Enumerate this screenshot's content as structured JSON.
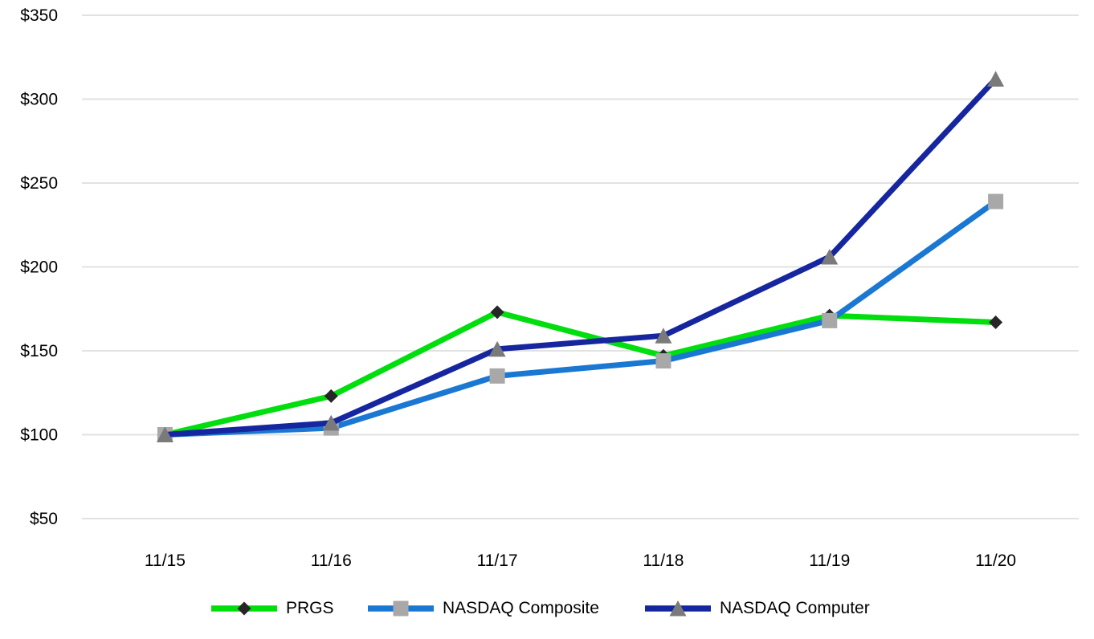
{
  "page": {
    "background_color": "#ffffff",
    "text_color": "#000000",
    "gridline_color": "#e2e2e2"
  },
  "chart_data": {
    "type": "line",
    "title": "",
    "xlabel": "",
    "ylabel": "",
    "x_labels": [
      "11/15",
      "11/16",
      "11/17",
      "11/18",
      "11/19",
      "11/20"
    ],
    "y_ticks": [
      50,
      100,
      150,
      200,
      250,
      300,
      350
    ],
    "y_tick_labels": [
      "$50",
      "$100",
      "$150",
      "$200",
      "$250",
      "$300",
      "$350"
    ],
    "ylim": [
      50,
      350
    ],
    "grid": true,
    "legend_position": "bottom",
    "series": [
      {
        "name": "PRGS",
        "color": "#00de0e",
        "marker": "diamond",
        "marker_color": "#262626",
        "values": [
          100,
          123,
          173,
          147,
          171,
          167
        ]
      },
      {
        "name": "NASDAQ Composite",
        "color": "#1a78d3",
        "marker": "square",
        "marker_color": "#a8a8a8",
        "values": [
          100,
          104,
          135,
          144,
          168,
          239
        ]
      },
      {
        "name": "NASDAQ Computer",
        "color": "#16269e",
        "marker": "triangle",
        "marker_color": "#7a7a7a",
        "values": [
          100,
          107,
          151,
          159,
          206,
          312
        ]
      }
    ]
  },
  "legend": {
    "items": [
      {
        "label": "PRGS"
      },
      {
        "label": "NASDAQ Composite"
      },
      {
        "label": "NASDAQ Computer"
      }
    ]
  }
}
